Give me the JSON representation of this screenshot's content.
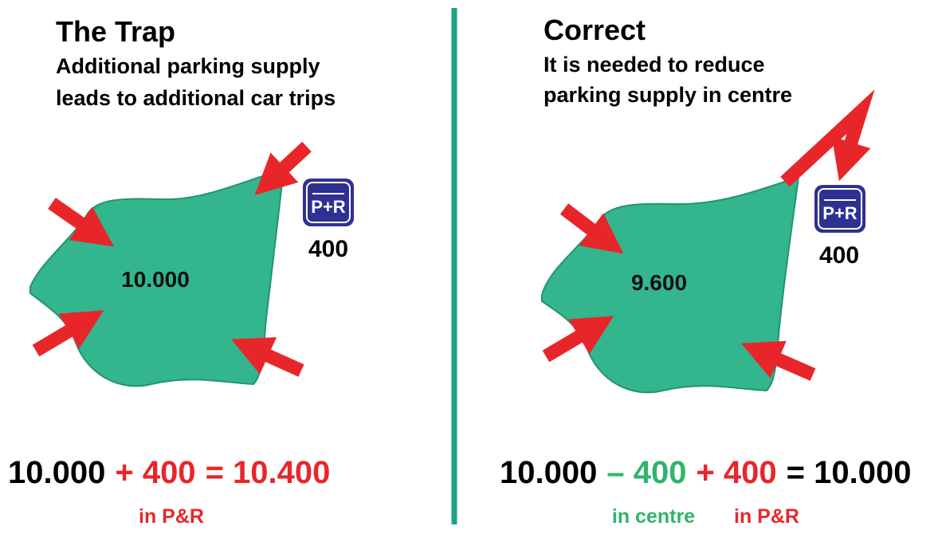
{
  "left": {
    "title": "The Trap",
    "subtitle": [
      "Additional parking supply",
      "leads to additional car trips"
    ],
    "centre_value": "10.000",
    "pr_label": "P+R",
    "pr_value": "400",
    "equation": [
      "10.000",
      "+ 400",
      "= 10.400"
    ],
    "notes": [
      "in P&R"
    ]
  },
  "right": {
    "title": "Correct",
    "subtitle": [
      "It is needed to reduce",
      "parking supply in centre"
    ],
    "centre_value": "9.600",
    "pr_label": "P+R",
    "pr_value": "400",
    "equation": [
      "10.000",
      "– 400",
      "+ 400",
      "= 10.000"
    ],
    "notes": [
      "in centre",
      "in P&R"
    ]
  }
}
